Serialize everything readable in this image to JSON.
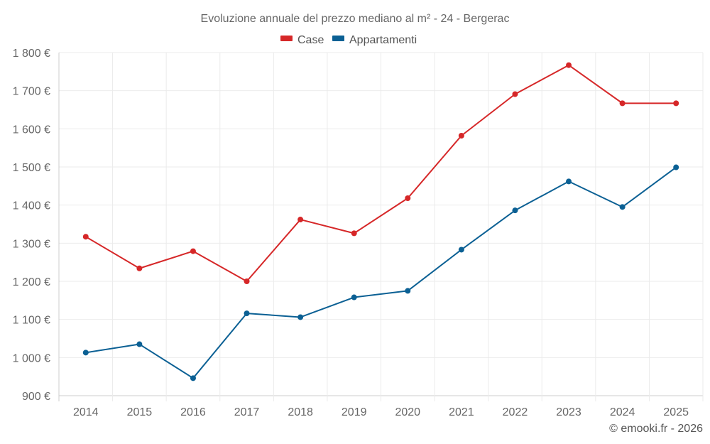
{
  "chart_data": {
    "type": "line",
    "title": "Evoluzione annuale del prezzo mediano al m² - 24 - Bergerac",
    "categories": [
      "2014",
      "2015",
      "2016",
      "2017",
      "2018",
      "2019",
      "2020",
      "2021",
      "2022",
      "2023",
      "2024",
      "2025"
    ],
    "series": [
      {
        "name": "Case",
        "color": "#d62728",
        "values": [
          1317,
          1234,
          1279,
          1200,
          1362,
          1326,
          1418,
          1582,
          1691,
          1767,
          1667,
          1667
        ]
      },
      {
        "name": "Appartamenti",
        "color": "#0b6094",
        "values": [
          1013,
          1035,
          946,
          1116,
          1106,
          1158,
          1175,
          1283,
          1386,
          1462,
          1395,
          1499
        ]
      }
    ],
    "ylim": [
      900,
      1800
    ],
    "yticks": [
      900,
      1000,
      1100,
      1200,
      1300,
      1400,
      1500,
      1600,
      1700,
      1800
    ],
    "ytick_labels": [
      "900 €",
      "1 000 €",
      "1 100 €",
      "1 200 €",
      "1 300 €",
      "1 400 €",
      "1 500 €",
      "1 600 €",
      "1 700 €",
      "1 800 €"
    ],
    "xlabel": "",
    "ylabel": "",
    "grid": true,
    "legend": "top-center"
  },
  "credit": "© emooki.fr - 2026"
}
